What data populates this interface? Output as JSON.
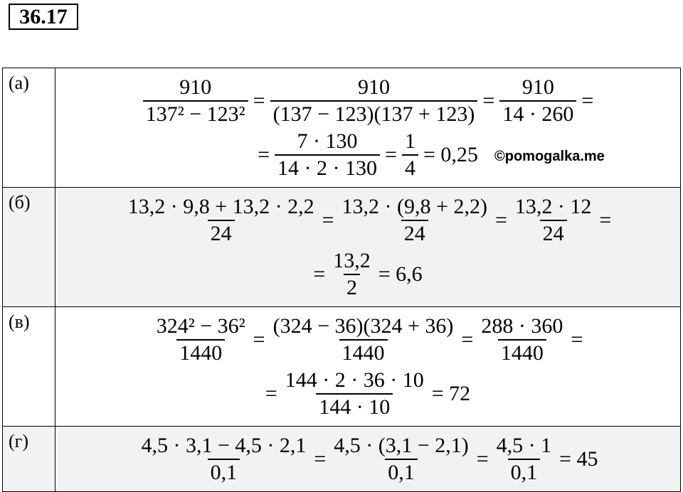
{
  "header": {
    "title": "36.17"
  },
  "watermark": "©pomogalka.me",
  "rows": [
    {
      "label": "(а)",
      "lines": [
        [
          {
            "num": "910",
            "den": "137² − 123²"
          },
          {
            "text": "="
          },
          {
            "num": "910",
            "den": "(137 − 123)(137 + 123)"
          },
          {
            "text": "="
          },
          {
            "num": "910",
            "den": "14 · 260"
          },
          {
            "text": "="
          }
        ],
        [
          {
            "text": "="
          },
          {
            "num": "7 · 130",
            "den": "14 · 2 · 130"
          },
          {
            "text": "="
          },
          {
            "num": "1",
            "den": "4"
          },
          {
            "text": "= 0,25"
          }
        ]
      ]
    },
    {
      "label": "(б)",
      "lines": [
        [
          {
            "num": "13,2 · 9,8 + 13,2 · 2,2",
            "den": "24"
          },
          {
            "text": "="
          },
          {
            "num": "13,2 · (9,8 + 2,2)",
            "den": "24"
          },
          {
            "text": "="
          },
          {
            "num": "13,2 · 12",
            "den": "24"
          },
          {
            "text": "="
          }
        ],
        [
          {
            "text": "="
          },
          {
            "num": "13,2",
            "den": "2"
          },
          {
            "text": "= 6,6"
          }
        ]
      ]
    },
    {
      "label": "(в)",
      "lines": [
        [
          {
            "num": "324² − 36²",
            "den": "1440"
          },
          {
            "text": "="
          },
          {
            "num": "(324 − 36)(324 + 36)",
            "den": "1440"
          },
          {
            "text": "="
          },
          {
            "num": "288 · 360",
            "den": "1440"
          },
          {
            "text": "="
          }
        ],
        [
          {
            "text": "="
          },
          {
            "num": "144 · 2 · 36 · 10",
            "den": "144 · 10"
          },
          {
            "text": "= 72"
          }
        ]
      ]
    },
    {
      "label": "(г)",
      "lines": [
        [
          {
            "num": "4,5 · 3,1 − 4,5 · 2,1",
            "den": "0,1"
          },
          {
            "text": "="
          },
          {
            "num": "4,5 · (3,1 − 2,1)",
            "den": "0,1"
          },
          {
            "text": "="
          },
          {
            "num": "4,5 · 1",
            "den": "0,1"
          },
          {
            "text": "= 45"
          }
        ]
      ]
    }
  ]
}
